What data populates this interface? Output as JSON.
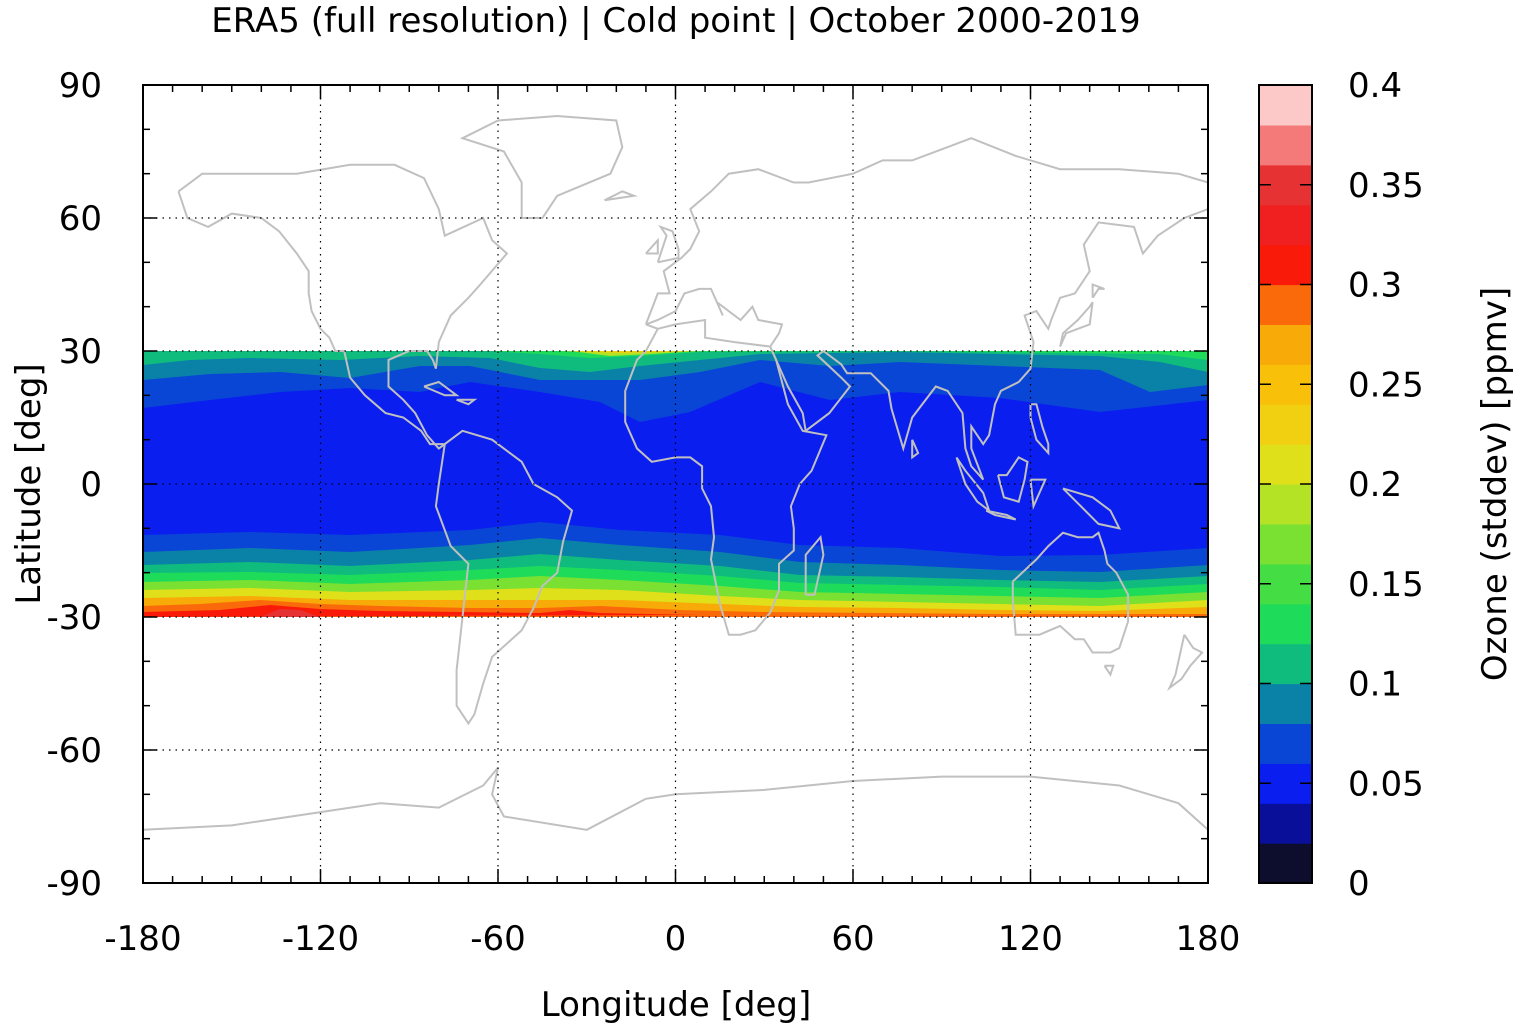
{
  "chart_data": {
    "type": "heatmap",
    "title": "ERA5 (full resolution) | Cold point | October 2000-2019",
    "xlabel": "Longitude [deg]",
    "ylabel": "Latitude [deg]",
    "xlim": [
      -180,
      180
    ],
    "ylim": [
      -90,
      90
    ],
    "xticks": [
      "-180",
      "-120",
      "-60",
      "0",
      "60",
      "120",
      "180"
    ],
    "yticks": [
      "90",
      "60",
      "30",
      "0",
      "-30",
      "-60",
      "-90"
    ],
    "data_lat_range": [
      -30,
      30
    ],
    "grid": "dotted",
    "colorbar": {
      "label": "Ozone (stddev) [ppmv]",
      "range": [
        0,
        0.4
      ],
      "ticks": [
        "0",
        "0.05",
        "0.1",
        "0.15",
        "0.2",
        "0.25",
        "0.3",
        "0.35",
        "0.4"
      ],
      "levels": [
        0,
        0.02,
        0.04,
        0.06,
        0.08,
        0.1,
        0.12,
        0.14,
        0.16,
        0.18,
        0.2,
        0.22,
        0.24,
        0.26,
        0.28,
        0.3,
        0.32,
        0.34,
        0.36,
        0.38,
        0.4
      ],
      "colors": [
        "#0d0d2e",
        "#0a0f9a",
        "#0a1ef0",
        "#0a46d6",
        "#0a82a8",
        "#10bb7e",
        "#1edc5a",
        "#44dd44",
        "#7ae032",
        "#b4e224",
        "#e0e01a",
        "#f0d010",
        "#f8c008",
        "#f8aa08",
        "#fa6a0a",
        "#fa1a0a",
        "#f02020",
        "#e63232",
        "#f47a7a",
        "#fcc8c8"
      ]
    },
    "coastline_color": "#c0c0c0",
    "profile_note_lat": [
      "-30",
      "-20",
      "-10",
      "0",
      "10",
      "20",
      "30"
    ],
    "zonal_profile_ppmv": [
      0.3,
      0.14,
      0.06,
      0.04,
      0.04,
      0.06,
      0.12
    ]
  }
}
